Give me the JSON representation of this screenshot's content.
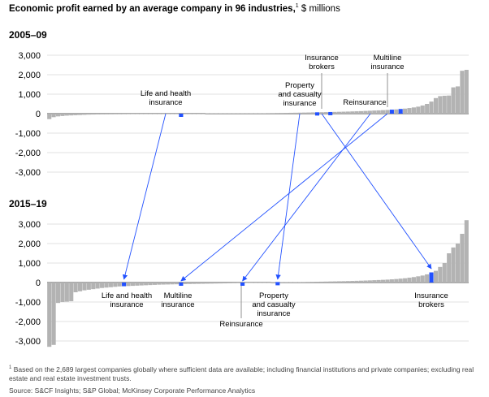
{
  "title": {
    "bold": "Economic profit earned by an average company in 96 industries,",
    "marker": "1",
    "unit": " $ millions"
  },
  "chart_data": [
    {
      "type": "bar",
      "title": "2005–09",
      "ylabel": "",
      "ylim": [
        -3000,
        3000
      ],
      "yticks": [
        "3,000",
        "2,000",
        "1,000",
        "0",
        "-1,000",
        "-2,000",
        "-3,000"
      ],
      "n_industries": 96,
      "values": [
        -280,
        -180,
        -140,
        -120,
        -100,
        -90,
        -80,
        -70,
        -60,
        -50,
        -45,
        -40,
        -38,
        -36,
        -34,
        -32,
        -30,
        -28,
        -26,
        -24,
        -22,
        -20,
        -18,
        -16,
        -14,
        -12,
        -10,
        -9,
        -8,
        -7,
        -6,
        -5,
        -4,
        -3,
        -2,
        -1,
        0,
        0,
        2,
        4,
        6,
        8,
        10,
        12,
        14,
        16,
        18,
        20,
        22,
        25,
        28,
        31,
        34,
        37,
        40,
        44,
        48,
        52,
        56,
        60,
        65,
        70,
        75,
        80,
        85,
        90,
        96,
        102,
        108,
        115,
        122,
        130,
        140,
        150,
        160,
        170,
        180,
        190,
        205,
        220,
        240,
        260,
        290,
        320,
        360,
        420,
        500,
        620,
        800,
        900,
        920,
        930,
        1350,
        1400,
        2200,
        2250
      ],
      "highlights": [
        {
          "label": "Life and health insurance",
          "index": 30
        },
        {
          "label": "Property and casualty insurance",
          "index": 61
        },
        {
          "label": "Insurance brokers",
          "index": 64
        },
        {
          "label": "Reinsurance",
          "index": 78
        },
        {
          "label": "Multiline insurance",
          "index": 80
        }
      ]
    },
    {
      "type": "bar",
      "title": "2015–19",
      "ylabel": "",
      "ylim": [
        -3000,
        3000
      ],
      "yticks": [
        "3,000",
        "2,000",
        "1,000",
        "0",
        "-1,000",
        "-2,000",
        "-3,000"
      ],
      "n_industries": 96,
      "values": [
        -3300,
        -3200,
        -1050,
        -1000,
        -980,
        -960,
        -500,
        -450,
        -400,
        -370,
        -340,
        -310,
        -280,
        -260,
        -240,
        -220,
        -200,
        -190,
        -180,
        -170,
        -160,
        -150,
        -140,
        -130,
        -120,
        -110,
        -105,
        -100,
        -95,
        -90,
        -85,
        -80,
        -76,
        -72,
        -68,
        -64,
        -60,
        -56,
        -52,
        -48,
        -44,
        -40,
        -36,
        -32,
        -28,
        -24,
        -20,
        -16,
        -12,
        -8,
        -4,
        0,
        4,
        8,
        12,
        16,
        20,
        24,
        28,
        32,
        36,
        40,
        45,
        50,
        55,
        60,
        65,
        70,
        76,
        82,
        88,
        95,
        102,
        110,
        120,
        130,
        140,
        150,
        165,
        180,
        200,
        220,
        250,
        280,
        320,
        360,
        420,
        520,
        600,
        800,
        1000,
        1500,
        1800,
        2000,
        2500,
        3200
      ],
      "highlights": [
        {
          "label": "Life and health insurance",
          "index": 17
        },
        {
          "label": "Multiline insurance",
          "index": 30
        },
        {
          "label": "Reinsurance",
          "index": 44
        },
        {
          "label": "Property and casualty insurance",
          "index": 52
        },
        {
          "label": "Insurance brokers",
          "index": 87
        }
      ]
    }
  ],
  "annotations_top": [
    {
      "id": "life",
      "lines": [
        "Life and health",
        "insurance"
      ]
    },
    {
      "id": "pc",
      "lines": [
        "Property",
        "and casualty",
        "insurance"
      ]
    },
    {
      "id": "brokers",
      "lines": [
        "Insurance",
        "brokers"
      ]
    },
    {
      "id": "multi",
      "lines": [
        "Multiline",
        "insurance"
      ]
    },
    {
      "id": "reins",
      "lines": [
        "Reinsurance"
      ]
    }
  ],
  "annotations_bottom": [
    {
      "id": "life",
      "lines": [
        "Life and health",
        "insurance"
      ]
    },
    {
      "id": "multi",
      "lines": [
        "Multiline",
        "insurance"
      ]
    },
    {
      "id": "reins",
      "lines": [
        "Reinsurance"
      ]
    },
    {
      "id": "pc",
      "lines": [
        "Property",
        "and casualty",
        "insurance"
      ]
    },
    {
      "id": "brokers",
      "lines": [
        "Insurance",
        "brokers"
      ]
    }
  ],
  "footnote": {
    "marker": "1",
    "text": " Based on the 2,689 largest companies globally where sufficient data are available; including financial institutions and private companies; excluding real estate and real estate investment trusts."
  },
  "source": "Source: S&CF Insights; S&P Global; McKinsey Corporate Performance Analytics",
  "colors": {
    "bar": "#b3b3b3",
    "highlight": "#2251ff",
    "grid": "#d9d9d9",
    "zero_line": "#555555",
    "text": "#000000",
    "arrow": "#2251ff",
    "leader": "#777777"
  }
}
